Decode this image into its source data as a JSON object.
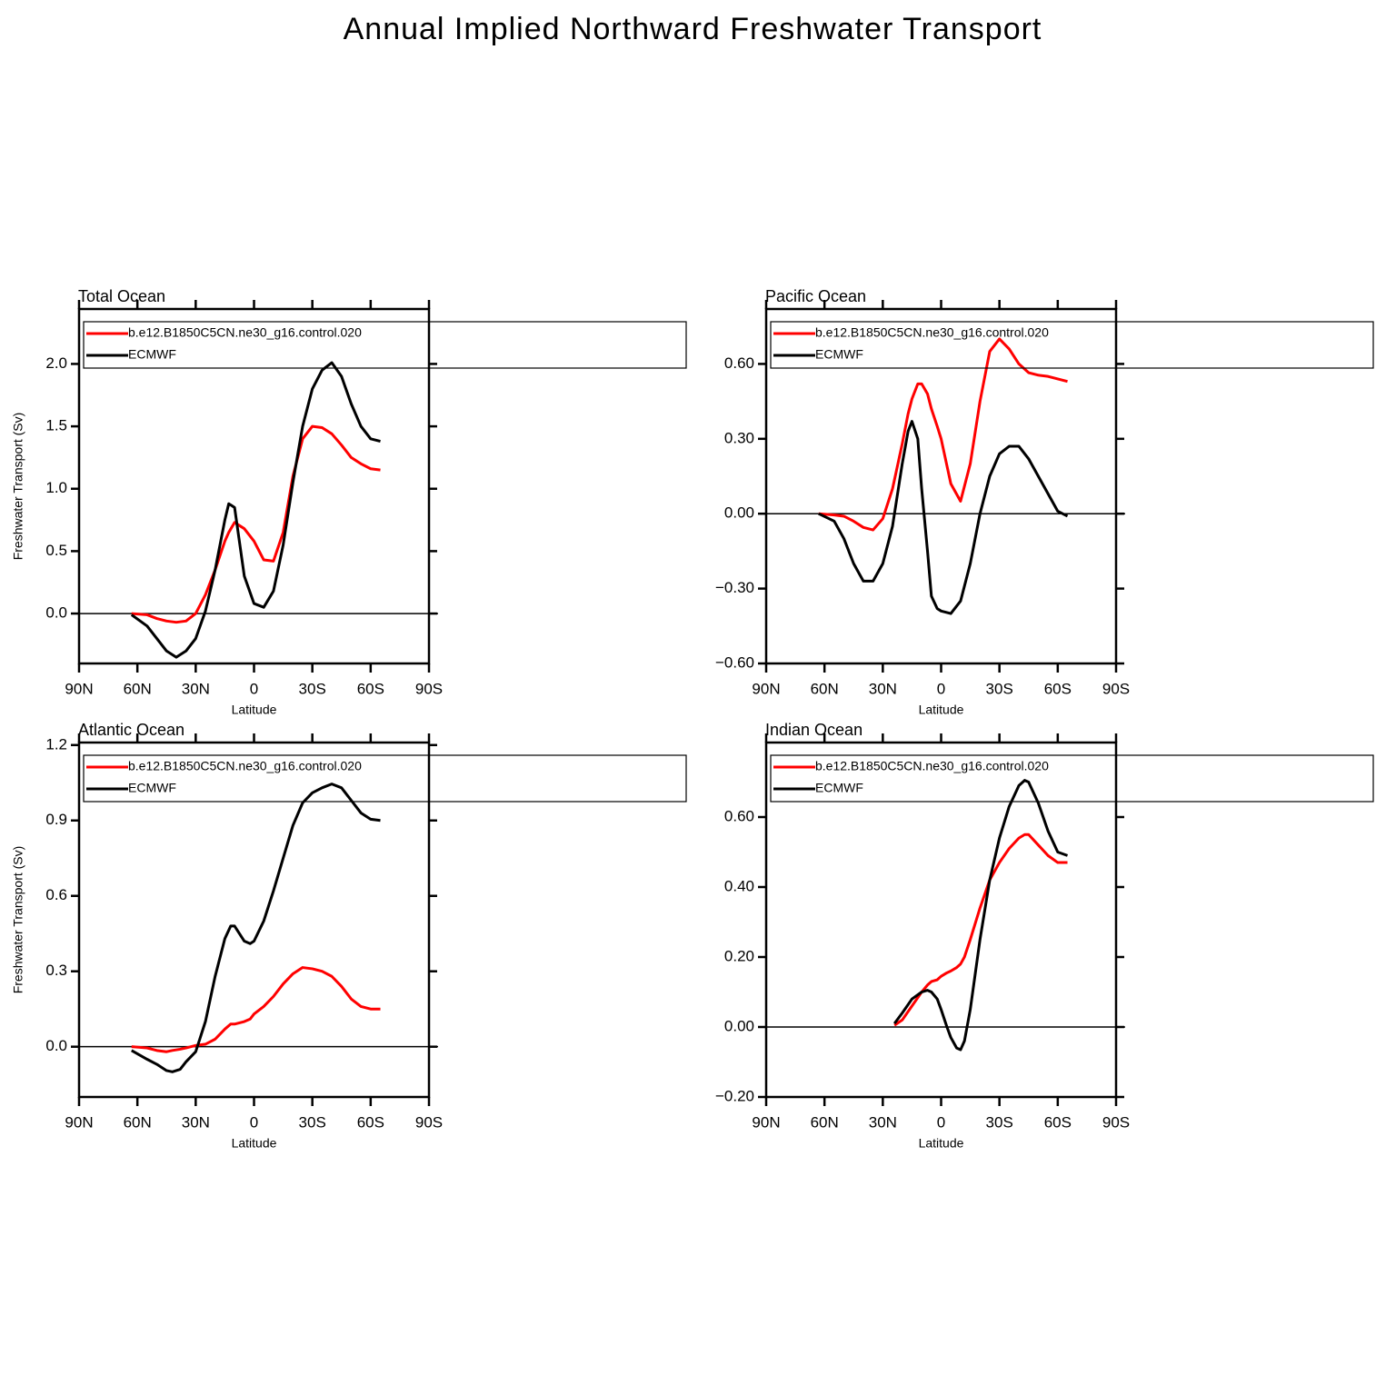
{
  "title": "Annual Implied Northward Freshwater Transport",
  "chart_data": [
    {
      "type": "line",
      "title": "Total Ocean",
      "xlabel": "Latitude",
      "ylabel": "Freshwater Transport (Sv)",
      "x": [
        63,
        55,
        50,
        45,
        40,
        35,
        30,
        25,
        20,
        15,
        13,
        10,
        5,
        0,
        -5,
        -10,
        -15,
        -20,
        -25,
        -30,
        -35,
        -40,
        -45,
        -50,
        -55,
        -60,
        -65
      ],
      "series": [
        {
          "name": "b.e12.B1850C5CN.ne30_g16.control.020",
          "color": "#ff0000",
          "values": [
            0,
            -0.01,
            -0.04,
            -0.06,
            -0.07,
            -0.06,
            0.0,
            0.15,
            0.35,
            0.58,
            0.65,
            0.73,
            0.68,
            0.58,
            0.43,
            0.42,
            0.65,
            1.1,
            1.4,
            1.5,
            1.49,
            1.44,
            1.35,
            1.25,
            1.2,
            1.16,
            1.15
          ]
        },
        {
          "name": "ECMWF",
          "color": "#000000",
          "values": [
            -0.01,
            -0.1,
            -0.2,
            -0.3,
            -0.35,
            -0.3,
            -0.2,
            0.02,
            0.35,
            0.75,
            0.88,
            0.85,
            0.3,
            0.08,
            0.05,
            0.18,
            0.55,
            1.05,
            1.5,
            1.8,
            1.95,
            2.01,
            1.9,
            1.68,
            1.5,
            1.4,
            1.38
          ]
        }
      ],
      "xlim": [
        90,
        -90
      ],
      "xticks": [
        {
          "value": 90,
          "label": "90N"
        },
        {
          "value": 60,
          "label": "60N"
        },
        {
          "value": 30,
          "label": "30N"
        },
        0,
        {
          "value": -30,
          "label": "30S"
        },
        {
          "value": -60,
          "label": "60S"
        },
        {
          "value": -90,
          "label": "90S"
        }
      ],
      "ylim": [
        -0.4,
        2.44
      ],
      "yticks": [
        {
          "value": 0,
          "label": "0.0"
        },
        {
          "value": 0.5,
          "label": "0.5"
        },
        {
          "value": 1,
          "label": "1.0"
        },
        {
          "value": 1.5,
          "label": "1.5"
        },
        {
          "value": 2,
          "label": "2.0"
        }
      ],
      "hline": 0
    },
    {
      "type": "line",
      "title": "Pacific Ocean",
      "xlabel": "Latitude",
      "x": [
        63,
        55,
        50,
        45,
        40,
        35,
        30,
        25,
        20,
        17,
        15,
        12,
        10,
        7,
        5,
        2,
        0,
        -5,
        -10,
        -15,
        -20,
        -25,
        -30,
        -35,
        -40,
        -45,
        -50,
        -55,
        -60,
        -65
      ],
      "series": [
        {
          "name": "b.e12.B1850C5CN.ne30_g16.control.020",
          "color": "#ff0000",
          "values": [
            0,
            -0.005,
            -0.01,
            -0.03,
            -0.055,
            -0.065,
            -0.02,
            0.1,
            0.28,
            0.4,
            0.46,
            0.52,
            0.52,
            0.48,
            0.42,
            0.35,
            0.3,
            0.12,
            0.05,
            0.2,
            0.45,
            0.65,
            0.7,
            0.66,
            0.6,
            0.565,
            0.555,
            0.55,
            0.54,
            0.53
          ]
        },
        {
          "name": "ECMWF",
          "color": "#000000",
          "values": [
            0,
            -0.03,
            -0.1,
            -0.2,
            -0.27,
            -0.27,
            -0.2,
            -0.05,
            0.2,
            0.33,
            0.37,
            0.3,
            0.1,
            -0.15,
            -0.33,
            -0.38,
            -0.39,
            -0.4,
            -0.35,
            -0.2,
            0.0,
            0.15,
            0.24,
            0.27,
            0.27,
            0.22,
            0.15,
            0.08,
            0.01,
            -0.01
          ]
        }
      ],
      "xlim": [
        90,
        -90
      ],
      "xticks": [
        {
          "value": 90,
          "label": "90N"
        },
        {
          "value": 60,
          "label": "60N"
        },
        {
          "value": 30,
          "label": "30N"
        },
        0,
        {
          "value": -30,
          "label": "30S"
        },
        {
          "value": -60,
          "label": "60S"
        },
        {
          "value": -90,
          "label": "90S"
        }
      ],
      "ylim": [
        -0.6,
        0.82
      ],
      "yticks": [
        {
          "value": -0.6,
          "label": "−0.60"
        },
        {
          "value": -0.3,
          "label": "−0.30"
        },
        {
          "value": 0,
          "label": "0.00"
        },
        {
          "value": 0.3,
          "label": "0.30"
        },
        {
          "value": 0.6,
          "label": "0.60"
        }
      ],
      "hline": 0
    },
    {
      "type": "line",
      "title": "Atlantic Ocean",
      "xlabel": "Latitude",
      "ylabel": "Freshwater Transport (Sv)",
      "x": [
        63,
        55,
        50,
        45,
        42,
        38,
        35,
        30,
        25,
        20,
        15,
        12,
        10,
        5,
        2,
        0,
        -5,
        -10,
        -15,
        -20,
        -25,
        -30,
        -35,
        -40,
        -45,
        -50,
        -55,
        -60,
        -65
      ],
      "series": [
        {
          "name": "b.e12.B1850C5CN.ne30_g16.control.020",
          "color": "#ff0000",
          "values": [
            0,
            -0.005,
            -0.015,
            -0.02,
            -0.015,
            -0.01,
            -0.005,
            0.005,
            0.01,
            0.03,
            0.07,
            0.09,
            0.09,
            0.1,
            0.11,
            0.13,
            0.16,
            0.2,
            0.25,
            0.29,
            0.315,
            0.31,
            0.3,
            0.28,
            0.24,
            0.19,
            0.16,
            0.15,
            0.15
          ]
        },
        {
          "name": "ECMWF",
          "color": "#000000",
          "values": [
            -0.015,
            -0.05,
            -0.07,
            -0.095,
            -0.1,
            -0.09,
            -0.06,
            -0.02,
            0.1,
            0.28,
            0.43,
            0.48,
            0.48,
            0.42,
            0.41,
            0.42,
            0.5,
            0.62,
            0.75,
            0.88,
            0.97,
            1.01,
            1.03,
            1.045,
            1.03,
            0.98,
            0.93,
            0.905,
            0.9
          ]
        }
      ],
      "xlim": [
        90,
        -90
      ],
      "xticks": [
        {
          "value": 90,
          "label": "90N"
        },
        {
          "value": 60,
          "label": "60N"
        },
        {
          "value": 30,
          "label": "30N"
        },
        0,
        {
          "value": -30,
          "label": "30S"
        },
        {
          "value": -60,
          "label": "60S"
        },
        {
          "value": -90,
          "label": "90S"
        }
      ],
      "ylim": [
        -0.2,
        1.21
      ],
      "yticks": [
        {
          "value": 0,
          "label": "0.0"
        },
        {
          "value": 0.3,
          "label": "0.3"
        },
        {
          "value": 0.6,
          "label": "0.6"
        },
        {
          "value": 0.9,
          "label": "0.9"
        },
        {
          "value": 1.2,
          "label": "1.2"
        }
      ],
      "hline": 0
    },
    {
      "type": "line",
      "title": "Indian Ocean",
      "xlabel": "Latitude",
      "x": [
        24,
        20,
        15,
        10,
        7,
        5,
        2,
        0,
        -3,
        -5,
        -8,
        -10,
        -12,
        -15,
        -20,
        -25,
        -30,
        -35,
        -40,
        -43,
        -45,
        -50,
        -55,
        -60,
        -65
      ],
      "series": [
        {
          "name": "b.e12.B1850C5CN.ne30_g16.control.020",
          "color": "#ff0000",
          "values": [
            0.005,
            0.02,
            0.06,
            0.1,
            0.12,
            0.13,
            0.135,
            0.145,
            0.155,
            0.16,
            0.17,
            0.18,
            0.2,
            0.25,
            0.34,
            0.42,
            0.47,
            0.51,
            0.54,
            0.55,
            0.55,
            0.52,
            0.49,
            0.47,
            0.47
          ]
        },
        {
          "name": "ECMWF",
          "color": "#000000",
          "values": [
            0.01,
            0.04,
            0.08,
            0.1,
            0.105,
            0.1,
            0.08,
            0.05,
            0.0,
            -0.03,
            -0.06,
            -0.065,
            -0.04,
            0.05,
            0.25,
            0.42,
            0.54,
            0.63,
            0.69,
            0.705,
            0.7,
            0.64,
            0.56,
            0.5,
            0.49
          ]
        }
      ],
      "xlim": [
        90,
        -90
      ],
      "xticks": [
        {
          "value": 90,
          "label": "90N"
        },
        {
          "value": 60,
          "label": "60N"
        },
        {
          "value": 30,
          "label": "30N"
        },
        0,
        {
          "value": -30,
          "label": "30S"
        },
        {
          "value": -60,
          "label": "60S"
        },
        {
          "value": -90,
          "label": "90S"
        }
      ],
      "ylim": [
        -0.2,
        0.813
      ],
      "yticks": [
        {
          "value": -0.2,
          "label": "−0.20"
        },
        {
          "value": 0,
          "label": "0.00"
        },
        {
          "value": 0.2,
          "label": "0.20"
        },
        {
          "value": 0.4,
          "label": "0.40"
        },
        {
          "value": 0.6,
          "label": "0.60"
        }
      ],
      "hline": 0
    }
  ]
}
